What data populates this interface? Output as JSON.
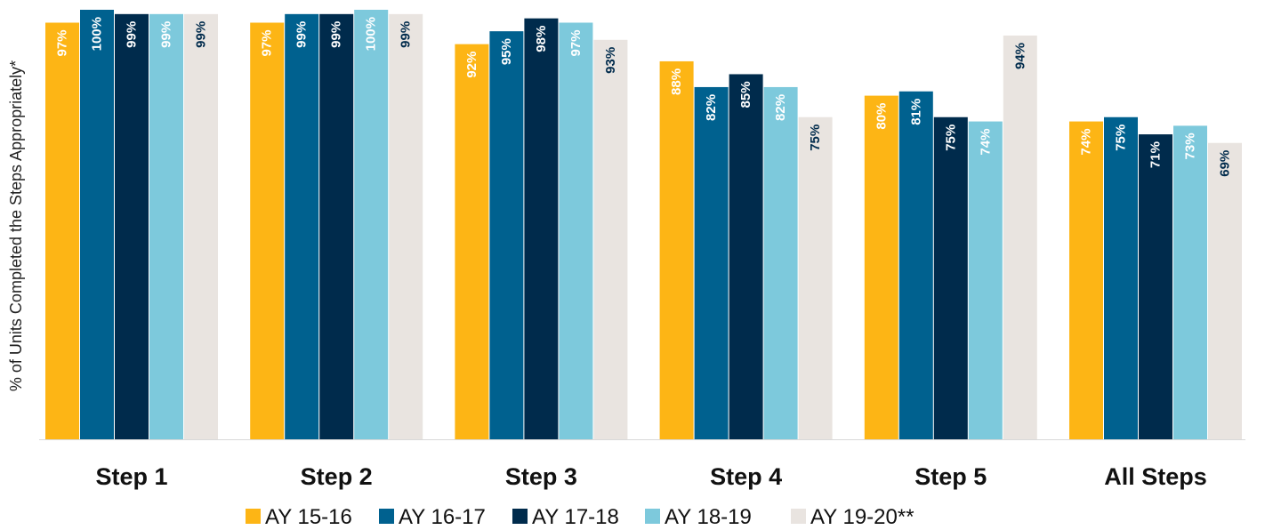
{
  "chart_data": {
    "type": "bar",
    "title": "",
    "ylabel": "% of Units Completed the Steps Appropriately*",
    "xlabel": "",
    "ylim": [
      0,
      100
    ],
    "grid": false,
    "legend_position": "bottom",
    "categories": [
      "Step 1",
      "Step 2",
      "Step 3",
      "Step 4",
      "Step 5",
      "All Steps"
    ],
    "series": [
      {
        "name": "AY 15-16",
        "color": "#FDB515",
        "label_color": "#FFFFFF",
        "values": [
          97,
          97,
          92,
          88,
          80,
          74
        ],
        "labels": [
          "97%",
          "97%",
          "92%",
          "88%",
          "80%",
          "74%"
        ]
      },
      {
        "name": "AY 16-17",
        "color": "#00618F",
        "label_color": "#FFFFFF",
        "values": [
          100,
          99,
          95,
          82,
          81,
          75
        ],
        "labels": [
          "100%",
          "99%",
          "95%",
          "82%",
          "81%",
          "75%"
        ]
      },
      {
        "name": "AY 17-18",
        "color": "#002B4C",
        "label_color": "#FFFFFF",
        "values": [
          99,
          99,
          98,
          85,
          75,
          71
        ],
        "labels": [
          "99%",
          "99%",
          "98%",
          "85%",
          "75%",
          "71%"
        ]
      },
      {
        "name": "AY 18-19",
        "color": "#7DC9DC",
        "label_color": "#FFFFFF",
        "values": [
          99,
          100,
          97,
          82,
          74,
          73
        ],
        "labels": [
          "99%",
          "100%",
          "97%",
          "82%",
          "74%",
          "73%"
        ]
      },
      {
        "name": "AY 19-20**",
        "color": "#E9E4E0",
        "label_color": "#002B4C",
        "values": [
          99,
          99,
          93,
          75,
          94,
          69
        ],
        "labels": [
          "99%",
          "99%",
          "93%",
          "75%",
          "94%",
          "69%"
        ]
      }
    ]
  }
}
